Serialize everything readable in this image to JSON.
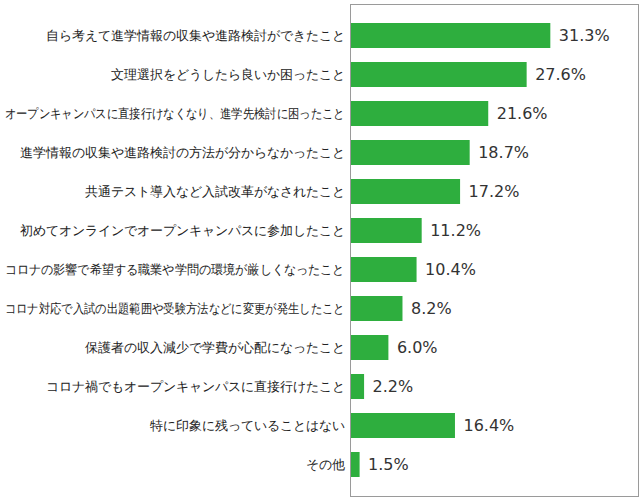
{
  "chart_data": {
    "type": "bar",
    "orientation": "horizontal",
    "categories": [
      "自ら考えて進学情報の収集や進路検討ができたこと",
      "文理選択をどうしたら良いか困ったこと",
      "オープンキャンパスに直接行けなくなり、進学先検討に困ったこと",
      "進学情報の収集や進路検討の方法が分からなかったこと",
      "共通テスト導入など入試改革がなされたこと",
      "初めてオンラインでオープンキャンパスに参加したこと",
      "コロナの影響で希望する職業や学問の環境が厳しくなったこと",
      "コロナ対応で入試の出題範囲や受験方法などに変更が発生したこと",
      "保護者の収入減少で学費が心配になったこと",
      "コロナ禍でもオープンキャンパスに直接行けたこと",
      "特に印象に残っていることはない",
      "その他"
    ],
    "values": [
      31.3,
      27.6,
      21.6,
      18.7,
      17.2,
      11.2,
      10.4,
      8.2,
      6.0,
      2.2,
      16.4,
      1.5
    ],
    "value_labels": [
      "31.3%",
      "27.6%",
      "21.6%",
      "18.7%",
      "17.2%",
      "11.2%",
      "10.4%",
      "8.2%",
      "6.0%",
      "2.2%",
      "16.4%",
      "1.5%"
    ],
    "color": "#2eae3e",
    "xlim": [
      0,
      45
    ],
    "data_labels": true,
    "tick_labels": "y",
    "grid": false
  }
}
